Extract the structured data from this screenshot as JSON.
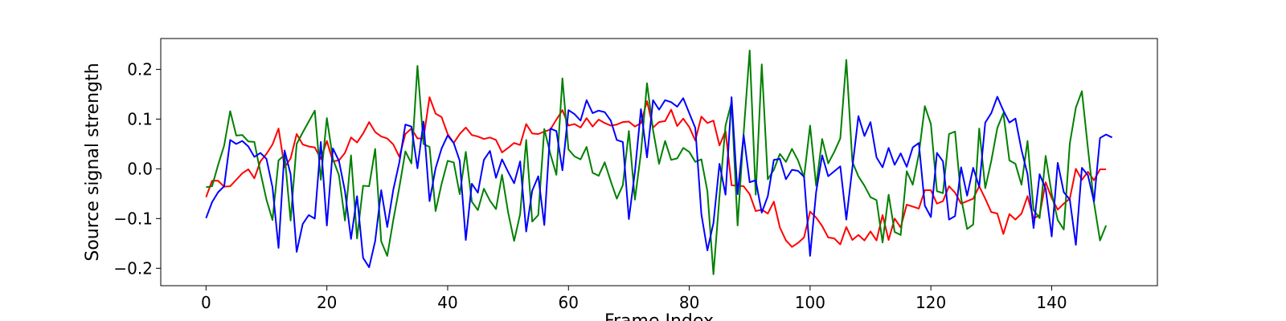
{
  "chart_data": {
    "type": "line",
    "title": "",
    "xlabel": "Frame Index",
    "ylabel": "Source signal strength",
    "xlim": [
      -7.5,
      157.5
    ],
    "ylim": [
      -0.235,
      0.262
    ],
    "xticks": [
      0,
      20,
      40,
      60,
      80,
      100,
      120,
      140
    ],
    "yticks": [
      -0.2,
      -0.1,
      0.0,
      0.1,
      0.2
    ],
    "ytick_labels": [
      "−0.2",
      "−0.1",
      "0.0",
      "0.1",
      "0.2"
    ],
    "grid": false,
    "legend": "none",
    "series": [
      {
        "color": "#ff0000",
        "values": [
          -0.057,
          -0.024,
          -0.024,
          -0.036,
          -0.035,
          -0.022,
          -0.009,
          -0.001,
          -0.019,
          0.015,
          0.03,
          0.049,
          0.081,
          0.003,
          0.021,
          0.07,
          0.049,
          0.045,
          0.043,
          0.02,
          0.056,
          0.015,
          0.017,
          0.032,
          0.063,
          0.053,
          0.071,
          0.094,
          0.074,
          0.065,
          0.061,
          0.049,
          0.024,
          0.07,
          0.081,
          0.061,
          0.061,
          0.144,
          0.111,
          0.104,
          0.07,
          0.052,
          0.07,
          0.083,
          0.068,
          0.065,
          0.06,
          0.063,
          0.058,
          0.033,
          0.042,
          0.052,
          0.048,
          0.09,
          0.071,
          0.07,
          0.075,
          0.079,
          0.099,
          0.118,
          0.087,
          0.09,
          0.083,
          0.102,
          0.085,
          0.099,
          0.092,
          0.087,
          0.089,
          0.094,
          0.095,
          0.085,
          0.092,
          0.136,
          0.083,
          0.094,
          0.096,
          0.119,
          0.086,
          0.101,
          0.084,
          0.057,
          0.105,
          0.092,
          0.097,
          0.047,
          0.076,
          -0.033,
          -0.034,
          -0.035,
          -0.051,
          -0.085,
          -0.082,
          -0.09,
          -0.066,
          -0.118,
          -0.144,
          -0.157,
          -0.149,
          -0.138,
          -0.086,
          -0.098,
          -0.115,
          -0.138,
          -0.14,
          -0.152,
          -0.117,
          -0.143,
          -0.133,
          -0.144,
          -0.126,
          -0.144,
          -0.093,
          -0.143,
          -0.1,
          -0.118,
          -0.072,
          -0.076,
          -0.08,
          -0.043,
          -0.043,
          -0.07,
          -0.065,
          -0.035,
          -0.048,
          -0.07,
          -0.065,
          -0.06,
          -0.035,
          -0.06,
          -0.087,
          -0.09,
          -0.131,
          -0.091,
          -0.102,
          -0.09,
          -0.055,
          -0.1,
          -0.093,
          -0.027,
          -0.059,
          -0.082,
          -0.07,
          -0.06,
          0.0,
          -0.022,
          -0.006,
          -0.023,
          -0.001,
          -0.001
        ]
      },
      {
        "color": "#008000",
        "values": [
          -0.037,
          -0.035,
          0.008,
          0.047,
          0.116,
          0.067,
          0.068,
          0.055,
          0.054,
          -0.007,
          -0.062,
          -0.103,
          0.017,
          0.028,
          -0.104,
          0.05,
          0.073,
          0.095,
          0.117,
          -0.022,
          0.102,
          0.02,
          -0.013,
          -0.104,
          0.027,
          -0.14,
          -0.034,
          -0.035,
          0.04,
          -0.146,
          -0.175,
          -0.103,
          -0.037,
          0.035,
          0.011,
          0.207,
          0.05,
          0.044,
          -0.085,
          -0.03,
          0.016,
          0.013,
          -0.051,
          0.034,
          -0.066,
          -0.083,
          -0.04,
          -0.064,
          -0.081,
          -0.012,
          -0.087,
          -0.145,
          -0.091,
          0.058,
          -0.106,
          -0.093,
          0.08,
          0.03,
          -0.012,
          0.182,
          0.039,
          0.025,
          0.019,
          0.044,
          -0.008,
          -0.014,
          0.013,
          -0.025,
          -0.06,
          -0.033,
          0.076,
          -0.062,
          0.032,
          0.172,
          0.078,
          0.01,
          0.056,
          0.018,
          0.021,
          0.042,
          0.034,
          0.014,
          0.019,
          -0.045,
          -0.212,
          -0.056,
          0.087,
          0.134,
          -0.114,
          0.072,
          0.238,
          -0.052,
          0.21,
          -0.021,
          -0.002,
          0.03,
          0.014,
          0.04,
          0.017,
          -0.017,
          0.087,
          -0.034,
          0.06,
          0.011,
          0.034,
          0.061,
          0.219,
          0.014,
          -0.015,
          -0.034,
          -0.057,
          -0.063,
          -0.148,
          -0.052,
          -0.127,
          -0.133,
          -0.005,
          -0.032,
          0.029,
          0.126,
          0.09,
          -0.045,
          -0.049,
          0.07,
          0.075,
          -0.058,
          -0.121,
          -0.112,
          0.081,
          -0.039,
          0.016,
          0.082,
          0.112,
          0.017,
          0.01,
          -0.032,
          0.056,
          -0.083,
          -0.099,
          0.026,
          -0.05,
          -0.103,
          -0.122,
          0.051,
          0.123,
          0.156,
          0.041,
          -0.068,
          -0.144,
          -0.114
        ]
      },
      {
        "color": "#0000ff",
        "values": [
          -0.099,
          -0.067,
          -0.047,
          -0.035,
          0.058,
          0.05,
          0.056,
          0.045,
          0.024,
          0.032,
          0.02,
          -0.037,
          -0.159,
          0.037,
          -0.011,
          -0.167,
          -0.111,
          -0.093,
          -0.1,
          0.054,
          -0.114,
          0.041,
          0.016,
          -0.045,
          -0.141,
          -0.055,
          -0.179,
          -0.198,
          -0.145,
          -0.043,
          -0.117,
          -0.042,
          0.013,
          0.089,
          0.085,
          0.001,
          0.095,
          -0.065,
          0.001,
          0.041,
          0.067,
          0.052,
          0.016,
          -0.143,
          -0.03,
          -0.048,
          0.018,
          0.036,
          -0.018,
          0.019,
          -0.006,
          -0.029,
          0.015,
          -0.126,
          -0.044,
          -0.015,
          -0.113,
          0.081,
          0.076,
          -0.003,
          0.118,
          0.11,
          0.097,
          0.138,
          0.112,
          0.117,
          0.114,
          0.097,
          0.058,
          0.054,
          -0.101,
          -0.006,
          0.12,
          0.023,
          0.138,
          0.119,
          0.138,
          0.134,
          0.125,
          0.142,
          0.112,
          0.082,
          -0.091,
          -0.164,
          -0.109,
          0.01,
          -0.052,
          0.144,
          -0.051,
          0.068,
          -0.027,
          -0.023,
          -0.088,
          -0.055,
          0.018,
          0.02,
          -0.021,
          -0.002,
          -0.004,
          -0.016,
          -0.175,
          -0.047,
          0.027,
          -0.015,
          -0.005,
          0.005,
          -0.102,
          0.002,
          0.106,
          0.066,
          0.094,
          0.023,
          0.003,
          0.042,
          0.008,
          0.031,
          0.004,
          0.043,
          0.052,
          -0.074,
          -0.097,
          0.032,
          0.015,
          -0.102,
          -0.095,
          0.003,
          -0.054,
          0.002,
          -0.036,
          0.093,
          0.112,
          0.145,
          0.117,
          0.093,
          0.101,
          0.038,
          -0.011,
          -0.119,
          -0.011,
          -0.04,
          -0.136,
          0.012,
          -0.047,
          -0.062,
          -0.153,
          0.002,
          -0.013,
          -0.066,
          0.062,
          0.069,
          0.063
        ]
      }
    ]
  }
}
